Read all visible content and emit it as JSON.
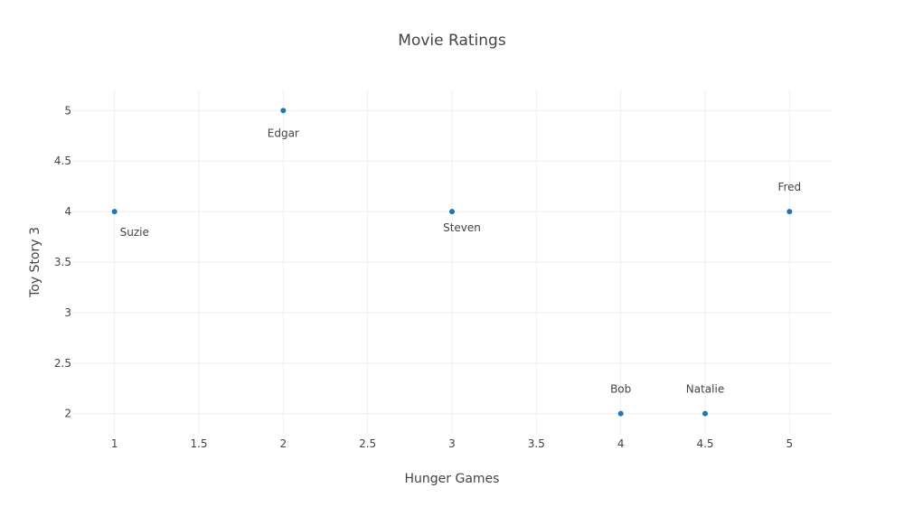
{
  "chart_data": {
    "type": "scatter",
    "title": "Movie Ratings",
    "xlabel": "Hunger Games",
    "ylabel": "Toy Story 3",
    "xlim": [
      0.75,
      5.25
    ],
    "ylim": [
      1.8,
      5.2
    ],
    "x_ticks": [
      1,
      1.5,
      2,
      2.5,
      3,
      3.5,
      4,
      4.5,
      5
    ],
    "y_ticks": [
      2,
      2.5,
      3,
      3.5,
      4,
      4.5,
      5
    ],
    "grid": true,
    "marker_color": "#1f77b4",
    "points": [
      {
        "label": "Suzie",
        "x": 1,
        "y": 4,
        "label_position": "bottom-right"
      },
      {
        "label": "Edgar",
        "x": 2,
        "y": 5,
        "label_position": "bottom"
      },
      {
        "label": "Steven",
        "x": 3,
        "y": 4,
        "label_position": "bottom-right"
      },
      {
        "label": "Bob",
        "x": 4,
        "y": 2,
        "label_position": "top"
      },
      {
        "label": "Natalie",
        "x": 4.5,
        "y": 2,
        "label_position": "top"
      },
      {
        "label": "Fred",
        "x": 5,
        "y": 4,
        "label_position": "top"
      }
    ]
  }
}
